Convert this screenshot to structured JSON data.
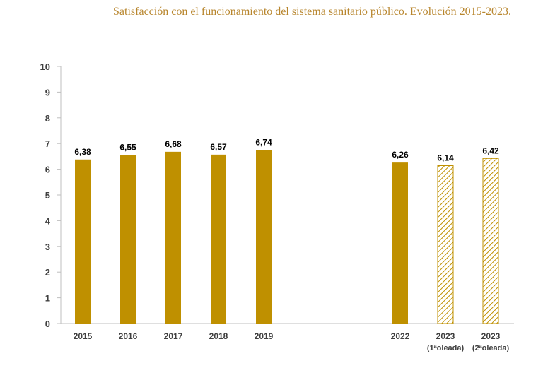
{
  "title": "Satisfacción con el funcionamiento del sistema sanitario público. Evolución 2015-2023.",
  "colors": {
    "bar": "#bf9000",
    "hatch": "#bf9000",
    "axis": "#bfbfbf",
    "title": "#b8862e"
  },
  "chart_data": {
    "type": "bar",
    "title": "Satisfacción con el funcionamiento del sistema sanitario público. Evolución 2015-2023.",
    "xlabel": "",
    "ylabel": "",
    "ylim": [
      0,
      10
    ],
    "yticks": [
      0,
      1,
      2,
      3,
      4,
      5,
      6,
      7,
      8,
      9,
      10
    ],
    "grid": false,
    "legend": "none",
    "categories": [
      "2015",
      "2016",
      "2017",
      "2018",
      "2019",
      "2022",
      "2023",
      "2023"
    ],
    "category_sublabels": [
      "",
      "",
      "",
      "",
      "",
      "",
      "(1ªoleada)",
      "(2ªoleada)"
    ],
    "values": [
      6.38,
      6.55,
      6.68,
      6.57,
      6.74,
      6.26,
      6.14,
      6.42
    ],
    "value_labels": [
      "6,38",
      "6,55",
      "6,68",
      "6,57",
      "6,74",
      "6,26",
      "6,14",
      "6,42"
    ],
    "fill_style": [
      "solid",
      "solid",
      "solid",
      "solid",
      "solid",
      "solid",
      "hatched",
      "hatched"
    ]
  }
}
